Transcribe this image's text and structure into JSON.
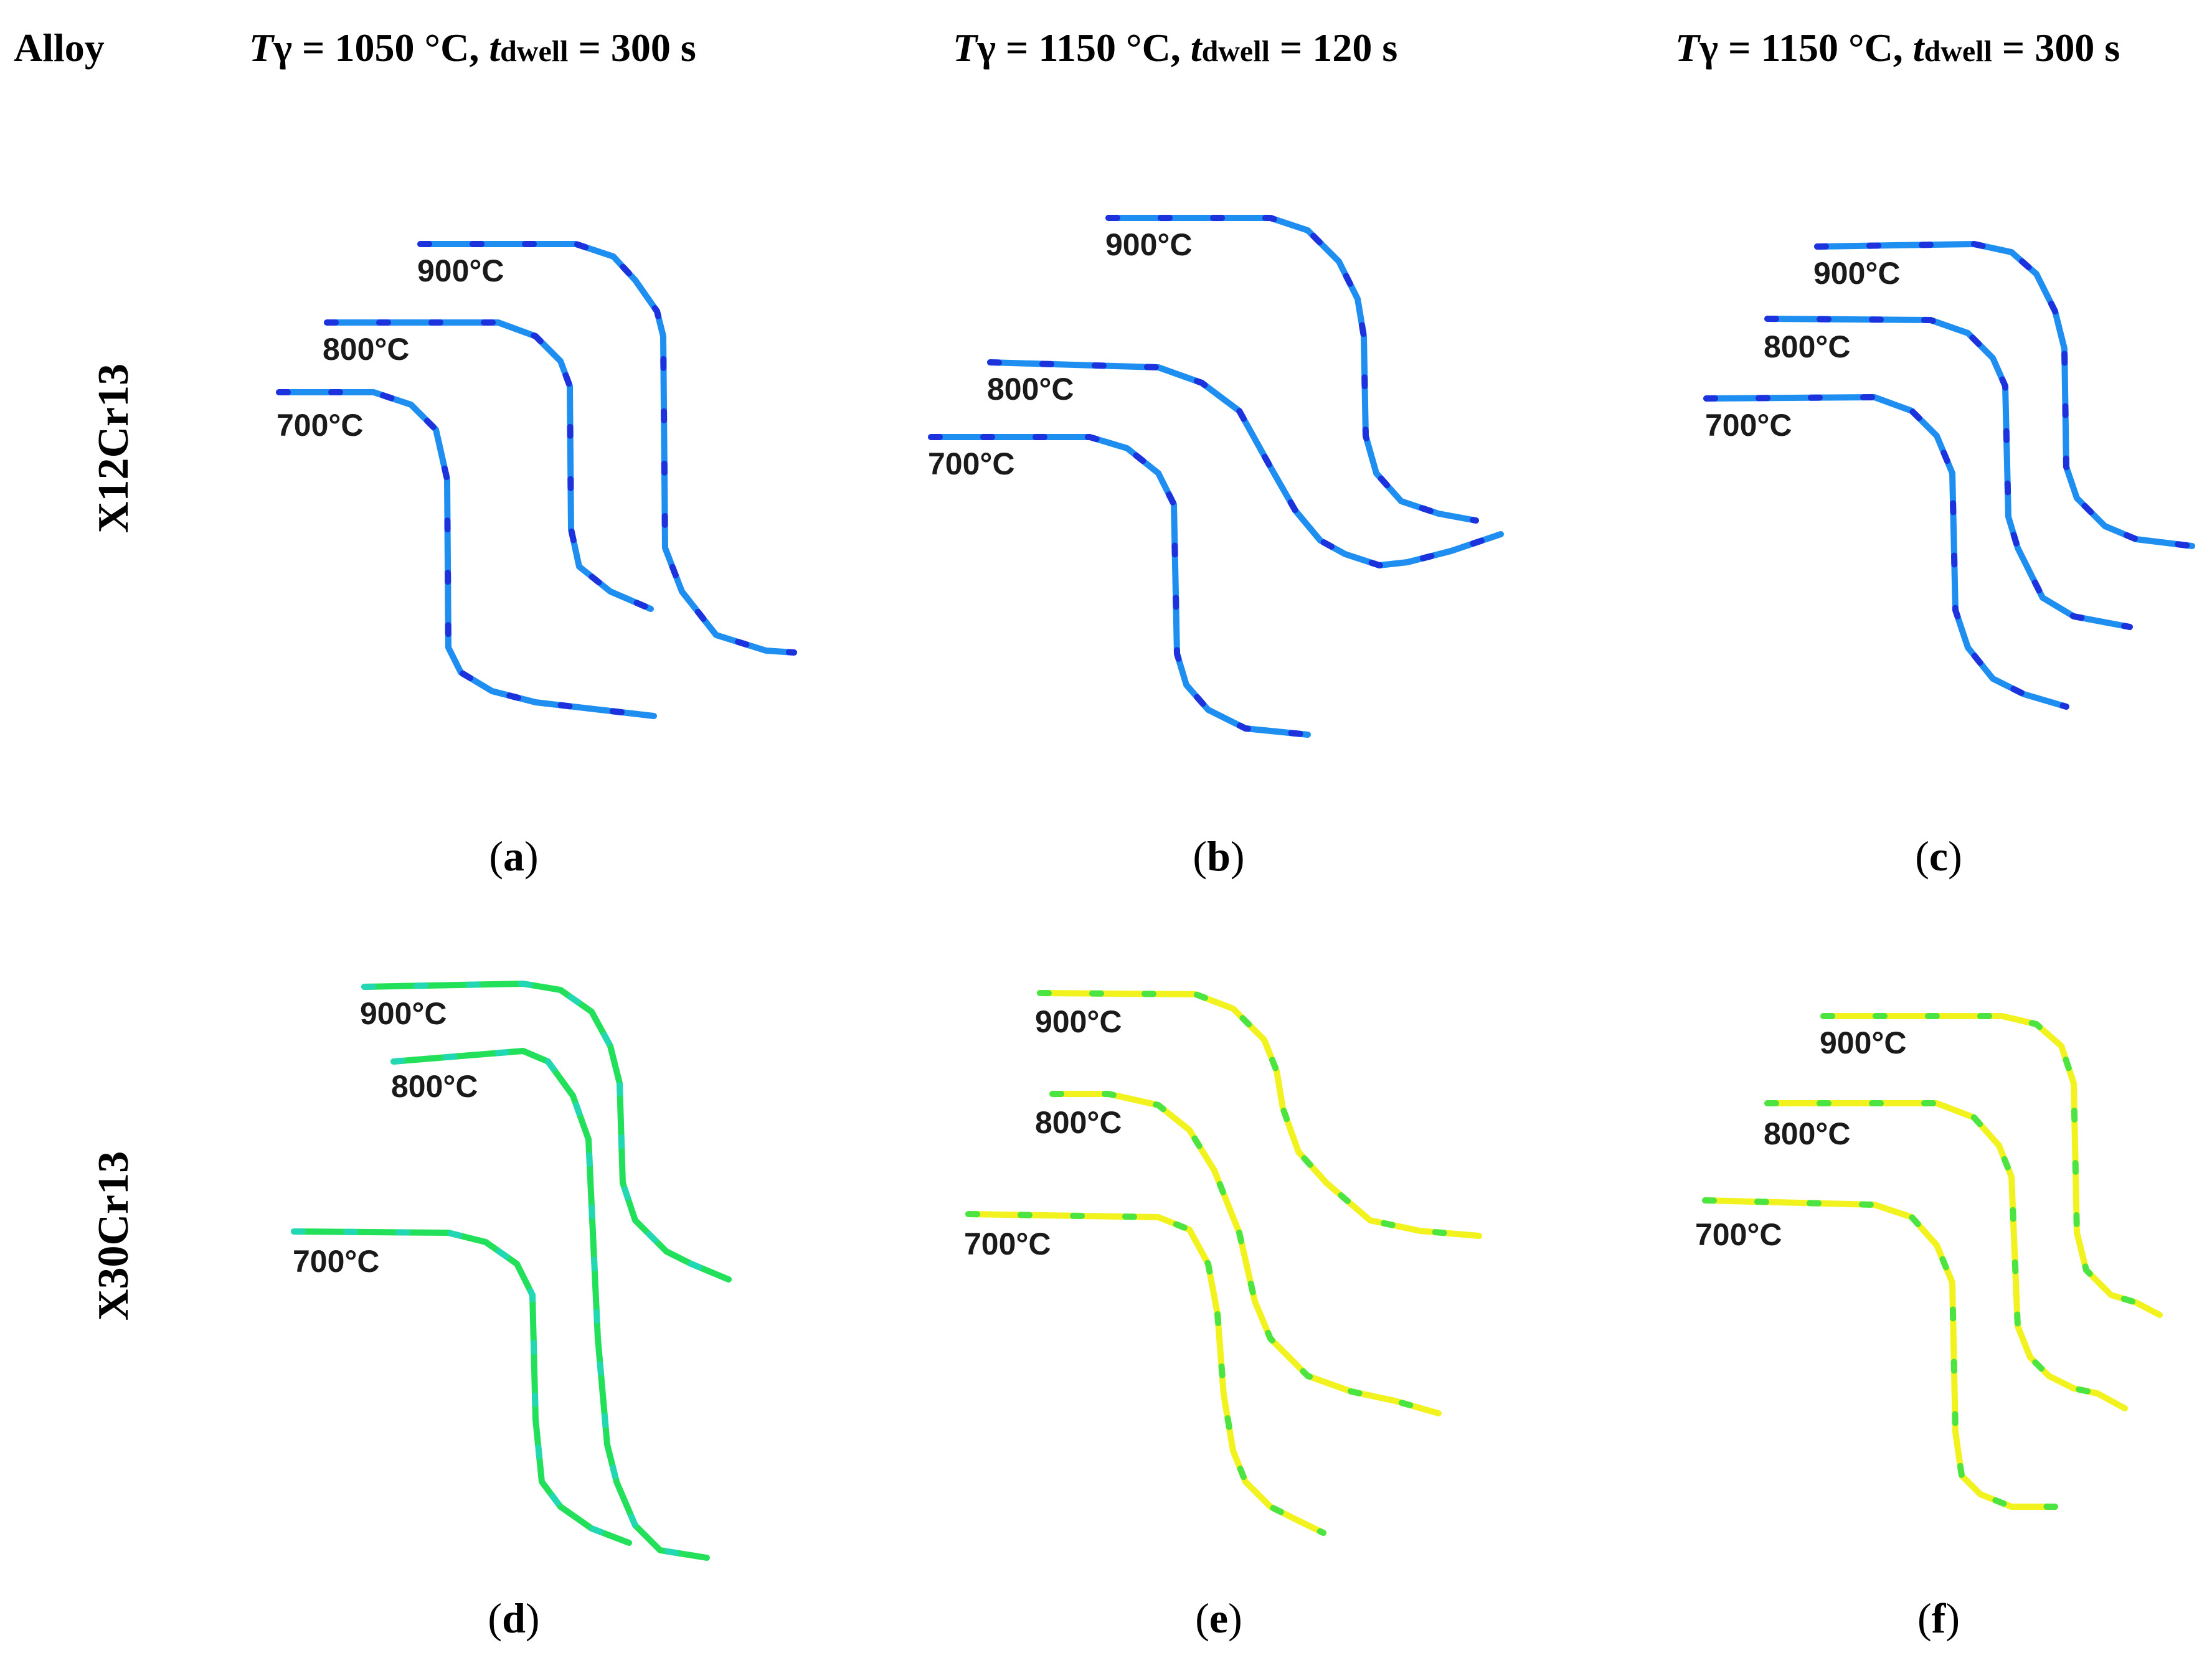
{
  "header": {
    "alloy_label": "Alloy",
    "columns": [
      {
        "T_sym": "T",
        "gamma": "γ",
        "T_eq": " = 1050 °C, ",
        "t_sym": "t",
        "t_sub": "dwell",
        "t_eq": " = 300 s"
      },
      {
        "T_sym": "T",
        "gamma": "γ",
        "T_eq": " = 1150 °C, ",
        "t_sym": "t",
        "t_sub": "dwell",
        "t_eq": " = 120 s"
      },
      {
        "T_sym": "T",
        "gamma": "γ",
        "T_eq": " = 1150 °C, ",
        "t_sym": "t",
        "t_sub": "dwell",
        "t_eq": " = 300 s"
      }
    ]
  },
  "rows": [
    {
      "alloy": "X12Cr13"
    },
    {
      "alloy": "X30Cr13"
    }
  ],
  "panels": [
    {
      "open": "(",
      "letter": "a",
      "close": ")",
      "color": "#1e8ff0",
      "accent": "#1a1ad8",
      "curves": [
        {
          "label": "900°C"
        },
        {
          "label": "800°C"
        },
        {
          "label": "700°C"
        }
      ]
    },
    {
      "open": "(",
      "letter": "b",
      "close": ")",
      "color": "#1e8ff0",
      "accent": "#1a1ad8",
      "curves": [
        {
          "label": "900°C"
        },
        {
          "label": "800°C"
        },
        {
          "label": "700°C"
        }
      ]
    },
    {
      "open": "(",
      "letter": "c",
      "close": ")",
      "color": "#1e8ff0",
      "accent": "#1a1ad8",
      "curves": [
        {
          "label": "900°C"
        },
        {
          "label": "800°C"
        },
        {
          "label": "700°C"
        }
      ]
    },
    {
      "open": "(",
      "letter": "d",
      "close": ")",
      "color": "#22e05a",
      "accent": "#22d6c8",
      "curves": [
        {
          "label": "900°C"
        },
        {
          "label": "800°C"
        },
        {
          "label": "700°C"
        }
      ]
    },
    {
      "open": "(",
      "letter": "e",
      "close": ")",
      "color": "#f2f21e",
      "accent": "#22e04a",
      "curves": [
        {
          "label": "900°C"
        },
        {
          "label": "800°C"
        },
        {
          "label": "700°C"
        }
      ]
    },
    {
      "open": "(",
      "letter": "f",
      "close": ")",
      "color": "#f2f21e",
      "accent": "#22e04a",
      "curves": [
        {
          "label": "900°C"
        },
        {
          "label": "800°C"
        },
        {
          "label": "700°C"
        }
      ]
    }
  ]
}
